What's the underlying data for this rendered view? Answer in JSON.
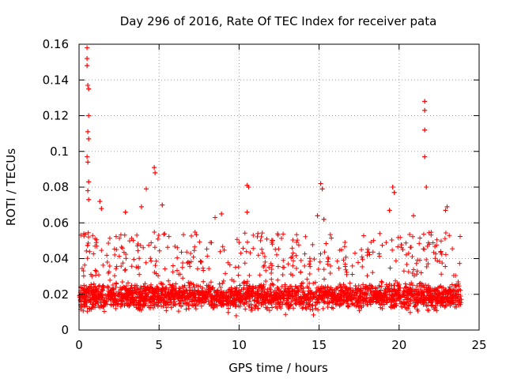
{
  "chart_data": {
    "type": "scatter",
    "title": "Day 296 of 2016, Rate Of TEC Index for receiver pata",
    "xlabel": "GPS time / hours",
    "ylabel": "ROTI / TECUs",
    "xlim": [
      0,
      25
    ],
    "ylim": [
      0,
      0.16
    ],
    "x_ticks": [
      0,
      5,
      10,
      15,
      20,
      25
    ],
    "x_tick_labels": [
      "0",
      "5",
      "10",
      "15",
      "20",
      "25"
    ],
    "y_ticks": [
      0,
      0.02,
      0.04,
      0.06,
      0.08,
      0.1,
      0.12,
      0.14,
      0.16
    ],
    "y_tick_labels": [
      "0",
      "0.02",
      "0.04",
      "0.06",
      "0.08",
      "0.1",
      "0.12",
      "0.14",
      "0.16"
    ],
    "grid": true,
    "marker": "plus",
    "color": "#ff0000",
    "data_range": {
      "x": [
        0,
        23.9
      ],
      "y_typical": [
        0.005,
        0.045
      ]
    },
    "series": [
      {
        "name": "ROTI",
        "notable_points": [
          {
            "x": 0.5,
            "y": 0.158
          },
          {
            "x": 0.5,
            "y": 0.152
          },
          {
            "x": 0.5,
            "y": 0.148
          },
          {
            "x": 0.55,
            "y": 0.137
          },
          {
            "x": 0.6,
            "y": 0.135
          },
          {
            "x": 0.6,
            "y": 0.12
          },
          {
            "x": 0.55,
            "y": 0.111
          },
          {
            "x": 0.6,
            "y": 0.107
          },
          {
            "x": 0.5,
            "y": 0.097
          },
          {
            "x": 0.55,
            "y": 0.094
          },
          {
            "x": 0.6,
            "y": 0.083
          },
          {
            "x": 0.55,
            "y": 0.078
          },
          {
            "x": 0.6,
            "y": 0.073
          },
          {
            "x": 1.3,
            "y": 0.072
          },
          {
            "x": 1.4,
            "y": 0.068
          },
          {
            "x": 2.9,
            "y": 0.066
          },
          {
            "x": 3.9,
            "y": 0.069
          },
          {
            "x": 4.2,
            "y": 0.079
          },
          {
            "x": 4.7,
            "y": 0.091
          },
          {
            "x": 4.75,
            "y": 0.088
          },
          {
            "x": 5.2,
            "y": 0.07
          },
          {
            "x": 8.5,
            "y": 0.063
          },
          {
            "x": 8.9,
            "y": 0.065
          },
          {
            "x": 10.5,
            "y": 0.081
          },
          {
            "x": 10.6,
            "y": 0.08
          },
          {
            "x": 10.5,
            "y": 0.066
          },
          {
            "x": 15.1,
            "y": 0.082
          },
          {
            "x": 15.2,
            "y": 0.079
          },
          {
            "x": 14.9,
            "y": 0.064
          },
          {
            "x": 15.3,
            "y": 0.062
          },
          {
            "x": 19.4,
            "y": 0.067
          },
          {
            "x": 19.6,
            "y": 0.08
          },
          {
            "x": 19.7,
            "y": 0.077
          },
          {
            "x": 20.9,
            "y": 0.064
          },
          {
            "x": 21.6,
            "y": 0.128
          },
          {
            "x": 21.6,
            "y": 0.123
          },
          {
            "x": 21.6,
            "y": 0.112
          },
          {
            "x": 21.6,
            "y": 0.097
          },
          {
            "x": 21.7,
            "y": 0.08
          },
          {
            "x": 22.9,
            "y": 0.067
          },
          {
            "x": 23.0,
            "y": 0.069
          }
        ]
      }
    ]
  }
}
